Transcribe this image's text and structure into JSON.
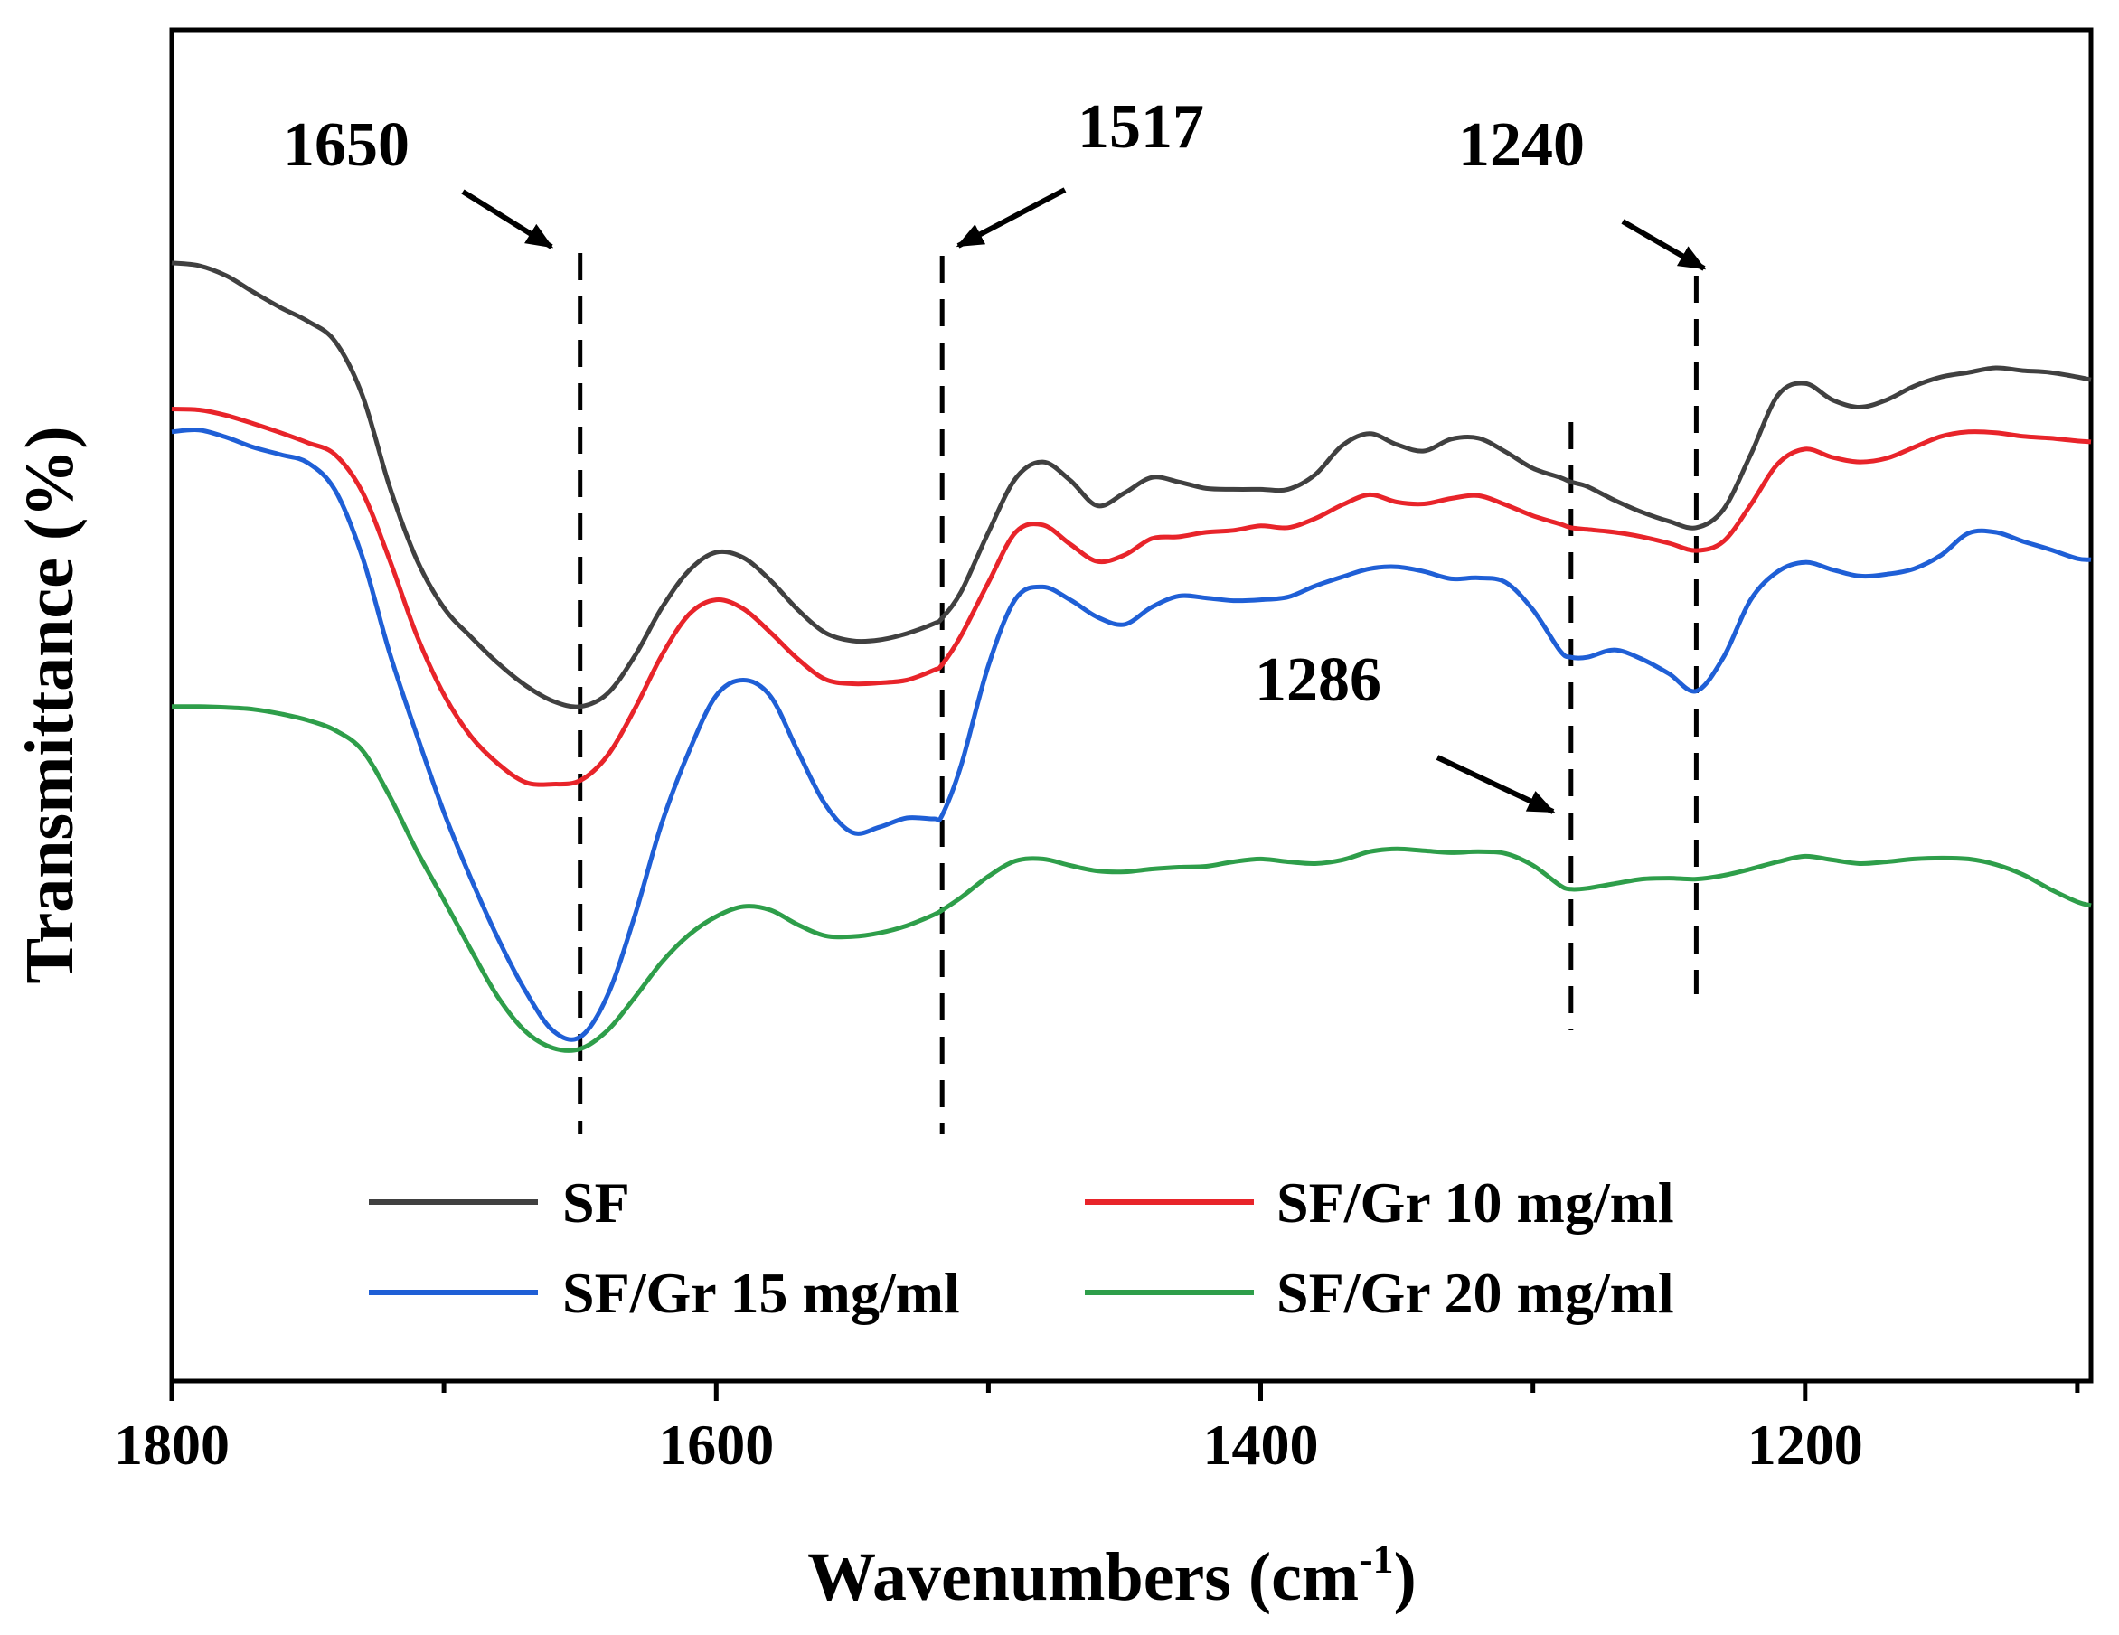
{
  "chart_data": {
    "type": "line",
    "title": "",
    "xlabel": "Wavenumbers (cm",
    "xlabel_sup": "-1",
    "xlabel_end": ")",
    "ylabel": "Transmittance (%)",
    "xlim": [
      1800,
      1095
    ],
    "ylim": [
      0,
      100
    ],
    "xticks": [
      1800,
      1600,
      1400,
      1200
    ],
    "xtick_labels": [
      "1800",
      "1600",
      "1400",
      "1200"
    ],
    "y_ticks_shown": false,
    "grid": false,
    "legend": {
      "position": "bottom",
      "columns": 2
    },
    "x": [
      1800,
      1790,
      1780,
      1770,
      1760,
      1750,
      1740,
      1730,
      1720,
      1710,
      1700,
      1690,
      1680,
      1670,
      1660,
      1650,
      1640,
      1630,
      1620,
      1610,
      1600,
      1590,
      1580,
      1570,
      1560,
      1550,
      1540,
      1530,
      1520,
      1517,
      1510,
      1500,
      1490,
      1480,
      1470,
      1460,
      1450,
      1440,
      1430,
      1420,
      1410,
      1400,
      1390,
      1380,
      1370,
      1360,
      1350,
      1340,
      1330,
      1320,
      1310,
      1300,
      1290,
      1286,
      1280,
      1270,
      1260,
      1250,
      1240,
      1230,
      1220,
      1210,
      1200,
      1190,
      1180,
      1170,
      1160,
      1150,
      1140,
      1130,
      1120,
      1110,
      1100,
      1095
    ],
    "series": [
      {
        "name": "SF",
        "color": "#404040",
        "values": [
          91.0,
          90.7,
          89.6,
          87.8,
          86.1,
          84.6,
          82.4,
          76.5,
          66.5,
          58.5,
          53.2,
          50.0,
          47.1,
          44.7,
          43.0,
          42.4,
          43.8,
          47.9,
          53.2,
          57.3,
          59.3,
          58.7,
          56.2,
          53.0,
          50.5,
          49.6,
          49.7,
          50.4,
          51.5,
          52.1,
          55.0,
          61.5,
          67.4,
          69.2,
          67.2,
          64.4,
          65.8,
          67.5,
          67.0,
          66.3,
          66.2,
          66.2,
          66.2,
          67.8,
          71.0,
          72.3,
          71.1,
          70.4,
          71.7,
          71.8,
          70.3,
          68.5,
          67.5,
          67.0,
          66.5,
          65.0,
          63.7,
          62.7,
          62.0,
          64.0,
          70.0,
          76.5,
          77.8,
          76.0,
          75.2,
          76.0,
          77.5,
          78.5,
          79.0,
          79.5,
          79.2,
          79.0,
          78.5,
          78.2
        ]
      },
      {
        "name": "SF/Gr 10 mg/ml",
        "color": "#e8242a",
        "values": [
          75.0,
          74.9,
          74.3,
          73.4,
          72.4,
          71.3,
          70.0,
          65.9,
          58.5,
          50.2,
          43.7,
          39.1,
          36.1,
          34.1,
          33.9,
          34.3,
          37.0,
          42.1,
          48.0,
          52.5,
          54.1,
          53.1,
          50.5,
          47.6,
          45.4,
          44.9,
          45.0,
          45.3,
          46.4,
          47.0,
          50.2,
          56.0,
          61.5,
          62.3,
          60.2,
          58.3,
          59.0,
          60.8,
          61.0,
          61.5,
          61.7,
          62.2,
          62.0,
          63.0,
          64.5,
          65.6,
          64.8,
          64.6,
          65.2,
          65.5,
          64.5,
          63.3,
          62.4,
          62.0,
          61.8,
          61.5,
          61.0,
          60.3,
          59.5,
          60.5,
          64.5,
          69.0,
          70.6,
          69.7,
          69.2,
          69.6,
          70.8,
          72.0,
          72.5,
          72.4,
          72.0,
          71.8,
          71.5,
          71.4
        ]
      },
      {
        "name": "SF/Gr 15 mg/ml",
        "color": "#1f5fd6",
        "values": [
          72.5,
          72.7,
          71.9,
          70.8,
          70.0,
          69.1,
          66.1,
          58.8,
          48.3,
          39.3,
          30.8,
          23.5,
          16.9,
          11.2,
          6.9,
          6.2,
          10.7,
          19.4,
          29.6,
          37.5,
          43.6,
          45.3,
          43.5,
          37.5,
          31.7,
          28.6,
          29.2,
          30.2,
          30.1,
          30.5,
          36.0,
          46.9,
          54.2,
          55.5,
          54.1,
          52.2,
          51.4,
          53.3,
          54.5,
          54.3,
          54.0,
          54.1,
          54.4,
          55.6,
          56.6,
          57.5,
          57.7,
          57.2,
          56.4,
          56.5,
          56.0,
          53.0,
          48.5,
          47.8,
          47.8,
          48.6,
          47.6,
          46.0,
          44.1,
          47.8,
          54.1,
          57.2,
          58.2,
          57.4,
          56.7,
          56.9,
          57.5,
          59.0,
          61.4,
          61.5,
          60.5,
          59.6,
          58.6,
          58.5
        ]
      },
      {
        "name": "SF/Gr 20 mg/ml",
        "color": "#2e9e4a",
        "values": [
          42.4,
          42.4,
          42.3,
          42.1,
          41.6,
          40.9,
          39.8,
          37.6,
          32.6,
          26.6,
          21.2,
          15.7,
          10.5,
          6.8,
          5.0,
          4.9,
          6.9,
          10.5,
          14.4,
          17.4,
          19.4,
          20.5,
          20.1,
          18.5,
          17.3,
          17.2,
          17.6,
          18.4,
          19.6,
          20.1,
          21.5,
          23.8,
          25.5,
          25.7,
          25.0,
          24.4,
          24.3,
          24.6,
          24.8,
          24.9,
          25.4,
          25.7,
          25.4,
          25.2,
          25.6,
          26.5,
          26.8,
          26.6,
          26.4,
          26.5,
          26.3,
          25.0,
          22.8,
          22.4,
          22.5,
          23.0,
          23.5,
          23.6,
          23.5,
          23.9,
          24.6,
          25.4,
          26.0,
          25.6,
          25.2,
          25.4,
          25.7,
          25.8,
          25.7,
          25.1,
          24.0,
          22.4,
          21.0,
          20.6
        ]
      }
    ],
    "annotations": [
      {
        "label": "1650",
        "x": 1650
      },
      {
        "label": "1517",
        "x": 1517
      },
      {
        "label": "1286",
        "x": 1286
      },
      {
        "label": "1240",
        "x": 1240
      }
    ]
  }
}
